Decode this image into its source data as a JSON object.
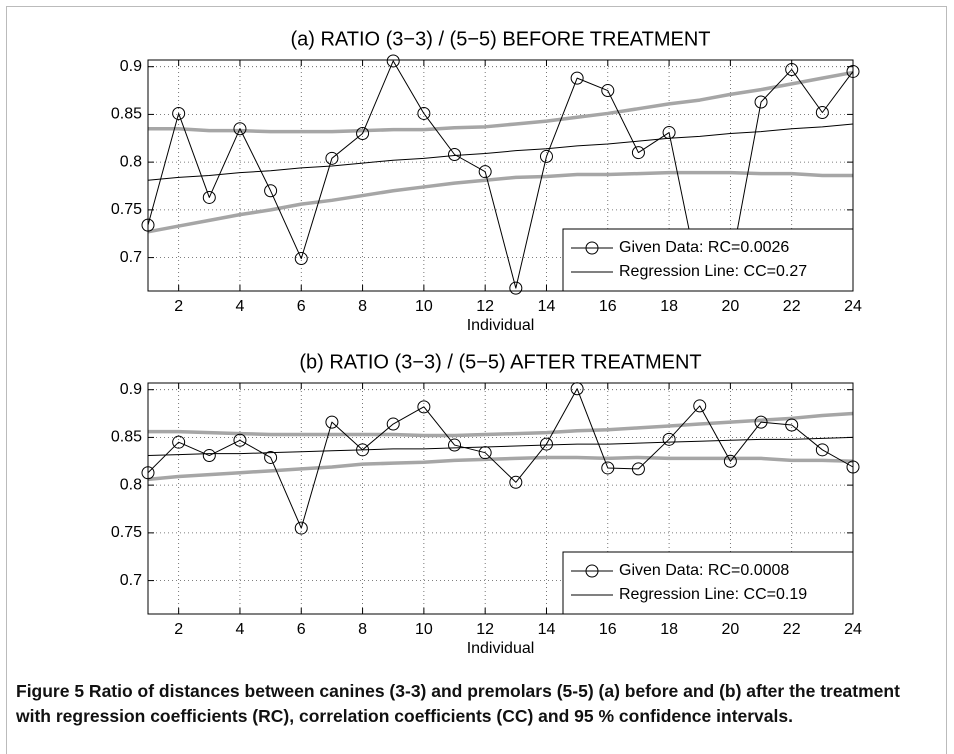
{
  "chart_data": [
    {
      "type": "line",
      "title": "(a) RATIO (3−3) / (5−5) BEFORE TREATMENT",
      "x_label": "Individual",
      "x": [
        1,
        2,
        3,
        4,
        5,
        6,
        7,
        8,
        9,
        10,
        11,
        12,
        13,
        14,
        15,
        16,
        17,
        18,
        19,
        20,
        21,
        22,
        23,
        24
      ],
      "xlim": [
        1,
        24
      ],
      "xticks": [
        2,
        4,
        6,
        8,
        10,
        12,
        14,
        16,
        18,
        20,
        22,
        24
      ],
      "ylim": [
        0.665,
        0.907
      ],
      "yticks": [
        0.7,
        0.75,
        0.8,
        0.85,
        0.9
      ],
      "grid": true,
      "legend": "lower right",
      "series": [
        {
          "name": "Given Data: RC=0.0026",
          "color": "#000000",
          "marker": "circle",
          "line_width": 1,
          "values": [
            0.734,
            0.851,
            0.763,
            0.835,
            0.77,
            0.699,
            0.804,
            0.83,
            0.906,
            0.851,
            0.808,
            0.79,
            0.668,
            0.806,
            0.888,
            0.875,
            0.81,
            0.831,
            0.675,
            0.69,
            0.863,
            0.897,
            0.852,
            0.895
          ]
        },
        {
          "name": "Regression Line: CC=0.27",
          "color": "#000000",
          "line_width": 1,
          "values": [
            0.781,
            0.784,
            0.786,
            0.789,
            0.791,
            0.794,
            0.796,
            0.799,
            0.802,
            0.804,
            0.807,
            0.809,
            0.812,
            0.814,
            0.817,
            0.819,
            0.822,
            0.825,
            0.827,
            0.83,
            0.832,
            0.835,
            0.837,
            0.84
          ]
        },
        {
          "color": "#a6a6a6",
          "line_width": 3.5,
          "values": [
            0.835,
            0.835,
            0.833,
            0.833,
            0.832,
            0.832,
            0.832,
            0.833,
            0.834,
            0.834,
            0.836,
            0.837,
            0.84,
            0.843,
            0.847,
            0.851,
            0.856,
            0.861,
            0.865,
            0.871,
            0.876,
            0.882,
            0.888,
            0.894
          ]
        },
        {
          "color": "#a6a6a6",
          "line_width": 3.5,
          "values": [
            0.727,
            0.733,
            0.739,
            0.745,
            0.75,
            0.756,
            0.76,
            0.765,
            0.77,
            0.774,
            0.778,
            0.781,
            0.784,
            0.785,
            0.787,
            0.787,
            0.788,
            0.789,
            0.789,
            0.789,
            0.788,
            0.788,
            0.786,
            0.786
          ]
        }
      ]
    },
    {
      "type": "line",
      "title": "(b) RATIO (3−3) / (5−5) AFTER TREATMENT",
      "x_label": "Individual",
      "x": [
        1,
        2,
        3,
        4,
        5,
        6,
        7,
        8,
        9,
        10,
        11,
        12,
        13,
        14,
        15,
        16,
        17,
        18,
        19,
        20,
        21,
        22,
        23,
        24
      ],
      "xlim": [
        1,
        24
      ],
      "xticks": [
        2,
        4,
        6,
        8,
        10,
        12,
        14,
        16,
        18,
        20,
        22,
        24
      ],
      "ylim": [
        0.665,
        0.907
      ],
      "yticks": [
        0.7,
        0.75,
        0.8,
        0.85,
        0.9
      ],
      "grid": true,
      "legend": "lower right",
      "series": [
        {
          "name": "Given Data: RC=0.0008",
          "color": "#000000",
          "marker": "circle",
          "line_width": 1,
          "values": [
            0.813,
            0.845,
            0.831,
            0.847,
            0.829,
            0.755,
            0.866,
            0.837,
            0.864,
            0.882,
            0.842,
            0.834,
            0.803,
            0.843,
            0.901,
            0.818,
            0.817,
            0.848,
            0.883,
            0.825,
            0.866,
            0.863,
            0.837,
            0.819
          ]
        },
        {
          "name": "Regression Line: CC=0.19",
          "color": "#000000",
          "line_width": 1,
          "values": [
            0.831,
            0.832,
            0.833,
            0.833,
            0.834,
            0.835,
            0.836,
            0.837,
            0.838,
            0.838,
            0.839,
            0.84,
            0.841,
            0.842,
            0.843,
            0.843,
            0.844,
            0.845,
            0.846,
            0.847,
            0.848,
            0.848,
            0.849,
            0.85
          ]
        },
        {
          "color": "#a6a6a6",
          "line_width": 3.5,
          "values": [
            0.856,
            0.856,
            0.855,
            0.854,
            0.853,
            0.853,
            0.853,
            0.853,
            0.853,
            0.852,
            0.852,
            0.853,
            0.854,
            0.855,
            0.857,
            0.858,
            0.86,
            0.862,
            0.864,
            0.866,
            0.868,
            0.87,
            0.873,
            0.875
          ]
        },
        {
          "color": "#a6a6a6",
          "line_width": 3.5,
          "values": [
            0.806,
            0.809,
            0.811,
            0.813,
            0.815,
            0.817,
            0.819,
            0.822,
            0.823,
            0.824,
            0.826,
            0.827,
            0.828,
            0.829,
            0.829,
            0.828,
            0.829,
            0.828,
            0.828,
            0.828,
            0.828,
            0.826,
            0.826,
            0.825
          ]
        }
      ]
    }
  ],
  "caption": "Figure 5 Ratio of distances between canines (3-3) and premolars (5-5) (a) before and (b) after the treatment with regression coefficients (RC), correlation coefficients (CC) and 95 % confidence intervals."
}
